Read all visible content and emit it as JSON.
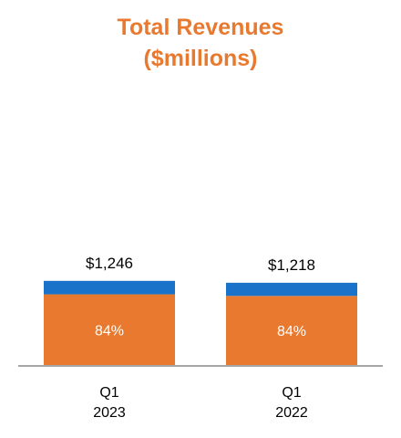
{
  "chart_data": {
    "type": "bar",
    "title_line1": "Total Revenues",
    "title_line2": "($millions)",
    "categories": [
      {
        "line1": "Q1",
        "line2": "2023"
      },
      {
        "line1": "Q1",
        "line2": "2022"
      }
    ],
    "totals": [
      1246,
      1218
    ],
    "total_labels": [
      "$1,246",
      "$1,218"
    ],
    "series": [
      {
        "share": [
          0.84,
          0.84
        ],
        "labels": [
          "84%",
          "84%"
        ],
        "color": "#E8792E"
      },
      {
        "share": [
          0.16,
          0.16
        ],
        "color": "#1A73C8"
      }
    ],
    "title_color": "#E8792E",
    "baseline_color": "#A6A6A6"
  }
}
